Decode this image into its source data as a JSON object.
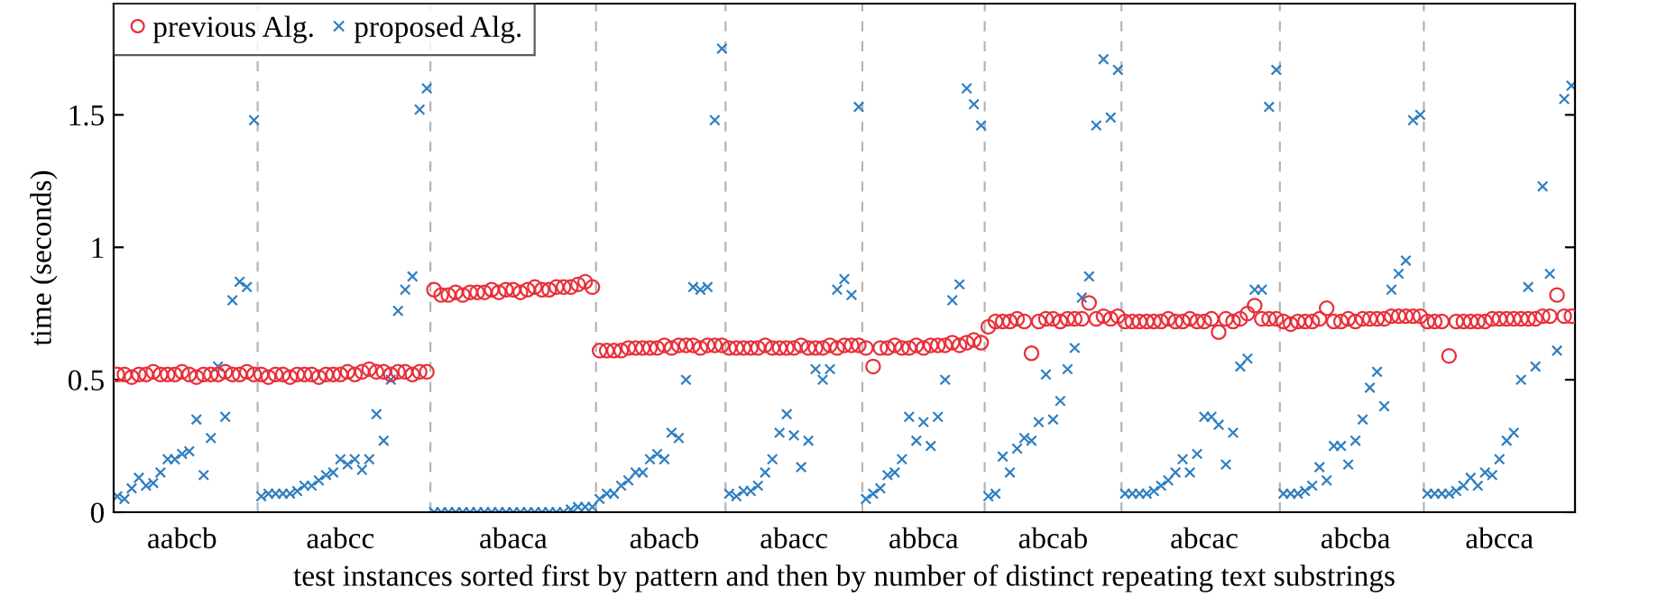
{
  "chart_data": {
    "type": "scatter",
    "xlabel": "test instances sorted first by pattern and then by number of distinct repeating text substrings",
    "ylabel": "time (seconds)",
    "ylim": [
      0,
      1.92
    ],
    "yticks": [
      0,
      0.5,
      1,
      1.5
    ],
    "categories": [
      null,
      null,
      null,
      null,
      null,
      null,
      null,
      null,
      null,
      "aabcb",
      null,
      null,
      null,
      null,
      null,
      null,
      null,
      null,
      null,
      null,
      null,
      null,
      null,
      null,
      null,
      null,
      null,
      null,
      null,
      null,
      null,
      "aabcc",
      null,
      null,
      null,
      null,
      null,
      null,
      null,
      null,
      null,
      null,
      null,
      null,
      null,
      null,
      null,
      null,
      null,
      null,
      null,
      null,
      null,
      null,
      null,
      "abaca",
      null,
      null,
      null,
      null,
      null,
      null,
      null,
      null,
      null,
      null,
      null,
      null,
      null,
      null,
      null,
      null,
      null,
      null,
      null,
      null,
      "abacb",
      null,
      null,
      null,
      null,
      null,
      null,
      null,
      null,
      null,
      null,
      null,
      null,
      null,
      null,
      null,
      null,
      null,
      "abacc",
      null,
      null,
      null,
      null,
      null,
      null,
      null,
      null,
      null,
      null,
      null,
      null,
      null,
      null,
      null,
      null,
      null,
      "abbca",
      null,
      null,
      null,
      null,
      null,
      null,
      null,
      null,
      null,
      null,
      null,
      null,
      null,
      null,
      null,
      null,
      null,
      "abcab",
      null,
      null,
      null,
      null,
      null,
      null,
      null,
      null,
      null,
      null,
      null,
      null,
      null,
      null,
      null,
      null,
      null,
      null,
      null,
      null,
      "abcac",
      null,
      null,
      null,
      null,
      null,
      null,
      null,
      null,
      null,
      null,
      null,
      null,
      null,
      null,
      null,
      null,
      null,
      null,
      null,
      null,
      "abcba",
      null,
      null,
      null,
      null,
      null,
      null,
      null,
      null,
      null,
      null,
      null,
      null,
      null,
      null,
      null,
      null,
      null,
      null,
      null,
      "abcca",
      null,
      null,
      null,
      null,
      null,
      null,
      null,
      null,
      null,
      null
    ],
    "legend": "top left",
    "series": [
      {
        "name": "previous Alg.",
        "color": "#e8303a",
        "marker": "circle",
        "values": [
          0.52,
          0.52,
          0.51,
          0.52,
          0.52,
          0.53,
          0.52,
          0.52,
          0.52,
          0.53,
          0.52,
          0.51,
          0.52,
          0.52,
          0.52,
          0.53,
          0.52,
          0.52,
          0.53,
          0.52,
          0.52,
          0.51,
          0.52,
          0.52,
          0.51,
          0.52,
          0.52,
          0.52,
          0.51,
          0.52,
          0.52,
          0.52,
          0.53,
          0.52,
          0.53,
          0.54,
          0.53,
          0.53,
          0.52,
          0.53,
          0.53,
          0.52,
          0.53,
          0.53,
          0.84,
          0.82,
          0.82,
          0.83,
          0.82,
          0.83,
          0.83,
          0.83,
          0.84,
          0.83,
          0.84,
          0.84,
          0.83,
          0.84,
          0.85,
          0.84,
          0.84,
          0.85,
          0.85,
          0.85,
          0.86,
          0.87,
          0.85,
          0.61,
          0.61,
          0.61,
          0.61,
          0.62,
          0.62,
          0.62,
          0.62,
          0.62,
          0.63,
          0.62,
          0.63,
          0.63,
          0.63,
          0.62,
          0.63,
          0.63,
          0.63,
          0.62,
          0.62,
          0.62,
          0.62,
          0.62,
          0.63,
          0.62,
          0.62,
          0.62,
          0.62,
          0.63,
          0.62,
          0.62,
          0.62,
          0.63,
          0.62,
          0.63,
          0.63,
          0.63,
          0.62,
          0.55,
          0.62,
          0.62,
          0.63,
          0.62,
          0.62,
          0.63,
          0.62,
          0.63,
          0.63,
          0.63,
          0.64,
          0.63,
          0.64,
          0.65,
          0.64,
          0.7,
          0.72,
          0.72,
          0.72,
          0.73,
          0.72,
          0.6,
          0.72,
          0.73,
          0.73,
          0.72,
          0.73,
          0.73,
          0.73,
          0.79,
          0.73,
          0.74,
          0.73,
          0.74,
          0.72,
          0.72,
          0.72,
          0.72,
          0.72,
          0.72,
          0.73,
          0.72,
          0.72,
          0.73,
          0.72,
          0.72,
          0.73,
          0.68,
          0.73,
          0.72,
          0.73,
          0.75,
          0.78,
          0.73,
          0.73,
          0.73,
          0.72,
          0.71,
          0.72,
          0.72,
          0.72,
          0.73,
          0.77,
          0.72,
          0.72,
          0.73,
          0.72,
          0.73,
          0.73,
          0.73,
          0.73,
          0.74,
          0.74,
          0.74,
          0.74,
          0.74,
          0.72,
          0.72,
          0.72,
          0.59,
          0.72,
          0.72,
          0.72,
          0.72,
          0.72,
          0.73,
          0.73,
          0.73,
          0.73,
          0.73,
          0.73,
          0.73,
          0.74,
          0.74,
          0.82,
          0.74,
          0.74
        ]
      },
      {
        "name": "proposed Alg.",
        "color": "#2f7fc1",
        "marker": "cross",
        "values": [
          0.06,
          0.05,
          0.09,
          0.13,
          0.1,
          0.11,
          0.15,
          0.2,
          0.2,
          0.22,
          0.23,
          0.35,
          0.14,
          0.28,
          0.55,
          0.36,
          0.8,
          0.87,
          0.85,
          1.48,
          0.06,
          0.07,
          0.07,
          0.07,
          0.07,
          0.08,
          0.1,
          0.1,
          0.12,
          0.14,
          0.15,
          0.2,
          0.18,
          0.2,
          0.16,
          0.2,
          0.37,
          0.27,
          0.5,
          0.76,
          0.84,
          0.89,
          1.52,
          1.6,
          0,
          0,
          0,
          0,
          0,
          0,
          0,
          0,
          0,
          0,
          0,
          0,
          0,
          0,
          0,
          0,
          0,
          0,
          0,
          0.01,
          0.02,
          0.02,
          0.02,
          0.05,
          0.07,
          0.07,
          0.1,
          0.12,
          0.15,
          0.15,
          0.2,
          0.22,
          0.2,
          0.3,
          0.28,
          0.5,
          0.85,
          0.84,
          0.85,
          1.48,
          1.75,
          0.07,
          0.06,
          0.08,
          0.08,
          0.1,
          0.15,
          0.2,
          0.3,
          0.37,
          0.29,
          0.17,
          0.27,
          0.54,
          0.5,
          0.54,
          0.84,
          0.88,
          0.82,
          1.53,
          0.05,
          0.07,
          0.09,
          0.14,
          0.15,
          0.2,
          0.36,
          0.27,
          0.34,
          0.25,
          0.36,
          0.5,
          0.8,
          0.86,
          1.6,
          1.54,
          1.46,
          0.06,
          0.07,
          0.21,
          0.15,
          0.24,
          0.28,
          0.27,
          0.34,
          0.52,
          0.35,
          0.42,
          0.54,
          0.62,
          0.81,
          0.89,
          1.46,
          1.71,
          1.49,
          1.67,
          0.07,
          0.07,
          0.07,
          0.07,
          0.08,
          0.1,
          0.12,
          0.15,
          0.2,
          0.15,
          0.22,
          0.36,
          0.36,
          0.33,
          0.18,
          0.3,
          0.55,
          0.58,
          0.84,
          0.84,
          1.53,
          1.67,
          0.07,
          0.07,
          0.07,
          0.08,
          0.1,
          0.17,
          0.12,
          0.25,
          0.25,
          0.18,
          0.27,
          0.35,
          0.47,
          0.53,
          0.4,
          0.84,
          0.9,
          0.95,
          1.48,
          1.5,
          0.07,
          0.07,
          0.07,
          0.07,
          0.08,
          0.1,
          0.13,
          0.1,
          0.15,
          0.14,
          0.2,
          0.27,
          0.3,
          0.5,
          0.85,
          0.55,
          1.23,
          0.9,
          0.61,
          1.56,
          1.61
        ]
      }
    ]
  }
}
